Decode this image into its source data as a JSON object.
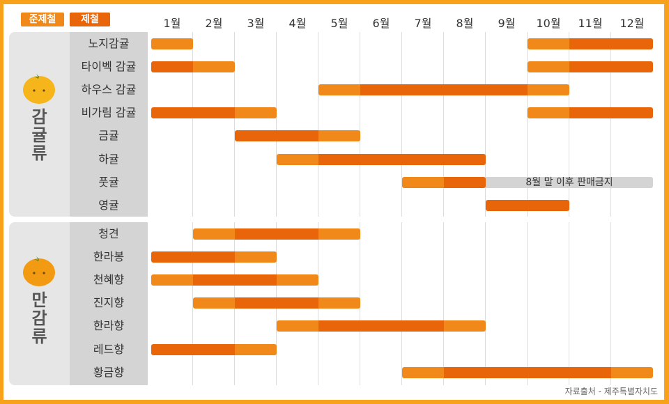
{
  "legend": {
    "semi_season": "준제철",
    "peak_season": "제철"
  },
  "colors": {
    "semi_season": "#f0891a",
    "peak_season": "#e8650a",
    "background": "#f7a21a"
  },
  "months": [
    "1월",
    "2월",
    "3월",
    "4월",
    "5월",
    "6월",
    "7월",
    "8월",
    "9월",
    "10월",
    "11월",
    "12월"
  ],
  "groups": [
    {
      "title": "감귤류",
      "icon": "tangerine-icon"
    },
    {
      "title": "만감류",
      "icon": "tangerine-icon"
    }
  ],
  "source": "자료출처 - 제주특별자치도",
  "chart_data": {
    "type": "gantt",
    "x_unit": "month",
    "legend_placement": "top-left",
    "groups": [
      {
        "name": "감귤류",
        "rows": [
          {
            "name": "노지감귤",
            "segments": [
              {
                "start": 1,
                "end": 2,
                "season": "semi"
              },
              {
                "start": 10,
                "end": 11,
                "season": "semi"
              },
              {
                "start": 11,
                "end": 13,
                "season": "peak"
              }
            ]
          },
          {
            "name": "타이벡 감귤",
            "segments": [
              {
                "start": 1,
                "end": 2,
                "season": "peak"
              },
              {
                "start": 2,
                "end": 3,
                "season": "semi"
              },
              {
                "start": 10,
                "end": 11,
                "season": "semi"
              },
              {
                "start": 11,
                "end": 13,
                "season": "peak"
              }
            ]
          },
          {
            "name": "하우스 감귤",
            "segments": [
              {
                "start": 5,
                "end": 6,
                "season": "semi"
              },
              {
                "start": 6,
                "end": 10,
                "season": "peak"
              },
              {
                "start": 10,
                "end": 11,
                "season": "semi"
              }
            ]
          },
          {
            "name": "비가림 감귤",
            "segments": [
              {
                "start": 1,
                "end": 3,
                "season": "peak"
              },
              {
                "start": 3,
                "end": 4,
                "season": "semi"
              },
              {
                "start": 10,
                "end": 11,
                "season": "semi"
              },
              {
                "start": 11,
                "end": 13,
                "season": "peak"
              }
            ]
          },
          {
            "name": "금귤",
            "segments": [
              {
                "start": 3,
                "end": 5,
                "season": "peak"
              },
              {
                "start": 5,
                "end": 6,
                "season": "semi"
              }
            ]
          },
          {
            "name": "하귤",
            "segments": [
              {
                "start": 4,
                "end": 5,
                "season": "semi"
              },
              {
                "start": 5,
                "end": 9,
                "season": "peak"
              }
            ]
          },
          {
            "name": "풋귤",
            "segments": [
              {
                "start": 7,
                "end": 8,
                "season": "semi"
              },
              {
                "start": 8,
                "end": 9,
                "season": "peak"
              }
            ],
            "note": {
              "start": 9,
              "end": 13,
              "text": "8월 말 이후 판매금지"
            }
          },
          {
            "name": "영귤",
            "segments": [
              {
                "start": 9,
                "end": 11,
                "season": "peak"
              }
            ]
          }
        ]
      },
      {
        "name": "만감류",
        "rows": [
          {
            "name": "청견",
            "segments": [
              {
                "start": 2,
                "end": 3,
                "season": "semi"
              },
              {
                "start": 3,
                "end": 5,
                "season": "peak"
              },
              {
                "start": 5,
                "end": 6,
                "season": "semi"
              }
            ]
          },
          {
            "name": "한라봉",
            "segments": [
              {
                "start": 1,
                "end": 3,
                "season": "peak"
              },
              {
                "start": 3,
                "end": 4,
                "season": "semi"
              }
            ]
          },
          {
            "name": "천혜향",
            "segments": [
              {
                "start": 1,
                "end": 2,
                "season": "semi"
              },
              {
                "start": 2,
                "end": 4,
                "season": "peak"
              },
              {
                "start": 4,
                "end": 5,
                "season": "semi"
              }
            ]
          },
          {
            "name": "진지향",
            "segments": [
              {
                "start": 2,
                "end": 3,
                "season": "semi"
              },
              {
                "start": 3,
                "end": 5,
                "season": "peak"
              },
              {
                "start": 5,
                "end": 6,
                "season": "semi"
              }
            ]
          },
          {
            "name": "한라향",
            "segments": [
              {
                "start": 4,
                "end": 5,
                "season": "semi"
              },
              {
                "start": 5,
                "end": 8,
                "season": "peak"
              },
              {
                "start": 8,
                "end": 9,
                "season": "semi"
              }
            ]
          },
          {
            "name": "레드향",
            "segments": [
              {
                "start": 1,
                "end": 3,
                "season": "peak"
              },
              {
                "start": 3,
                "end": 4,
                "season": "semi"
              }
            ]
          },
          {
            "name": "황금향",
            "segments": [
              {
                "start": 7,
                "end": 8,
                "season": "semi"
              },
              {
                "start": 8,
                "end": 12,
                "season": "peak"
              },
              {
                "start": 12,
                "end": 13,
                "season": "semi"
              }
            ]
          }
        ]
      }
    ]
  }
}
